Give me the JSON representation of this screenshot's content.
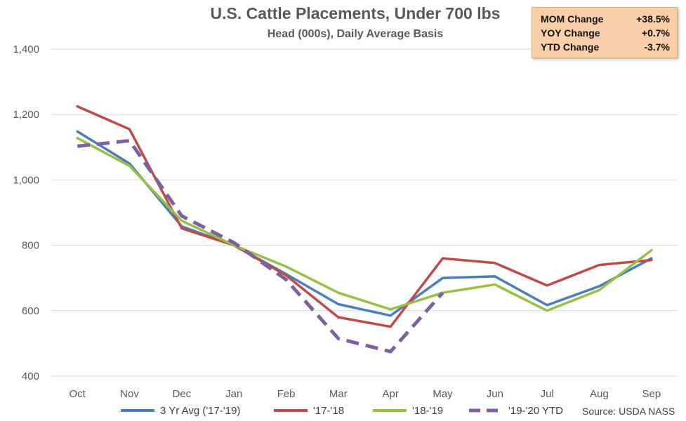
{
  "chart_data": {
    "type": "line",
    "title": "U.S. Cattle Placements, Under 700 lbs",
    "subtitle": "Head (000s), Daily Average Basis",
    "categories": [
      "Oct",
      "Nov",
      "Dec",
      "Jan",
      "Feb",
      "Mar",
      "Apr",
      "May",
      "Jun",
      "Jul",
      "Aug",
      "Sep"
    ],
    "ylim": [
      400,
      1400
    ],
    "yticks": [
      400,
      600,
      800,
      1000,
      1200,
      1400
    ],
    "ytick_labels": [
      "400",
      "600",
      "800",
      "1,000",
      "1,200",
      "1,400"
    ],
    "grid": true,
    "legend_position": "bottom",
    "series": [
      {
        "name": "3 Yr Avg ('17-'19)",
        "color": "#4a7ebb",
        "dash": "solid",
        "values": [
          1148,
          1050,
          858,
          800,
          712,
          620,
          585,
          700,
          705,
          617,
          675,
          760
        ]
      },
      {
        "name": "'17-'18",
        "color": "#be4b48",
        "dash": "solid",
        "values": [
          1225,
          1155,
          852,
          800,
          708,
          580,
          551,
          760,
          746,
          677,
          740,
          755
        ]
      },
      {
        "name": "'18-'19",
        "color": "#98c047",
        "dash": "solid",
        "values": [
          1128,
          1043,
          875,
          800,
          735,
          655,
          604,
          655,
          680,
          600,
          663,
          785
        ]
      },
      {
        "name": "'19-'20 YTD",
        "color": "#7d60a0",
        "dash": "dashed",
        "values": [
          1103,
          1120,
          890,
          808,
          695,
          515,
          475,
          655,
          null,
          null,
          null,
          null
        ]
      }
    ],
    "source": "Source: USDA NASS"
  },
  "change_box": {
    "rows": [
      {
        "label": "MOM Change",
        "value": "+38.5%"
      },
      {
        "label": "YOY Change",
        "value": "+0.7%"
      },
      {
        "label": "YTD Change",
        "value": "-3.7%"
      }
    ],
    "background": "#fbcfa9"
  }
}
